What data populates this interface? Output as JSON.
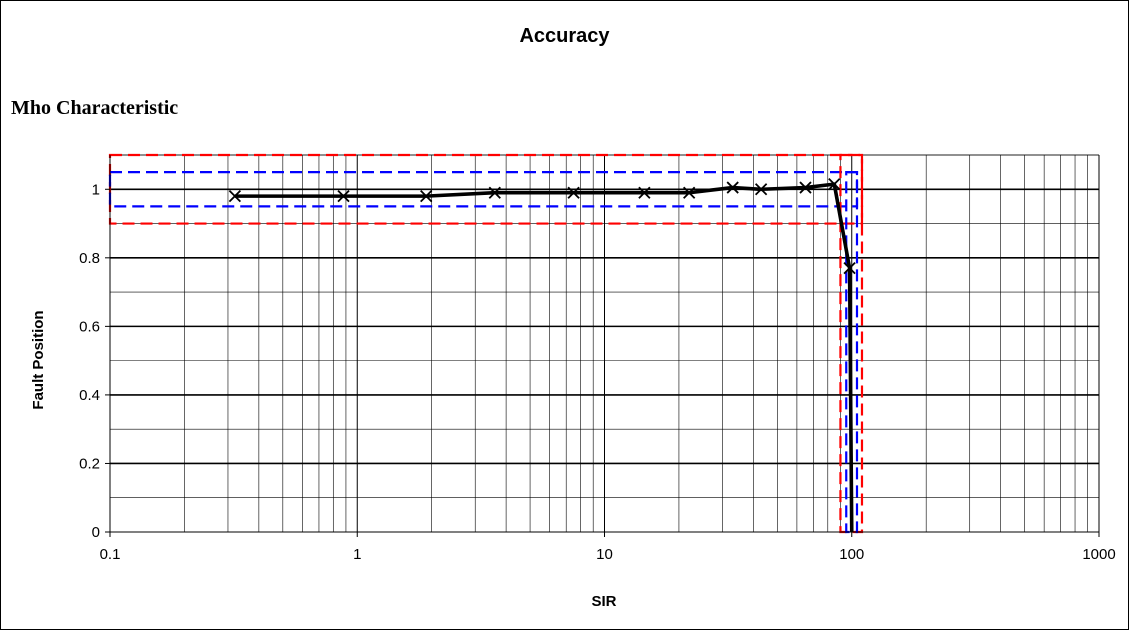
{
  "chart_data": {
    "type": "line",
    "title": "Accuracy",
    "subtitle": "Mho Characteristic",
    "xlabel": "SIR",
    "ylabel": "Fault Position",
    "xscale": "log",
    "xlim": [
      0.1,
      1000
    ],
    "ylim": [
      0,
      1.1
    ],
    "x_ticks": [
      "0.1",
      "1",
      "10",
      "100",
      "1000"
    ],
    "y_ticks": [
      "0",
      "0.2",
      "0.4",
      "0.6",
      "0.8",
      "1"
    ],
    "y_tick_values": [
      0,
      0.2,
      0.4,
      0.6,
      0.8,
      1
    ],
    "x_tick_values": [
      0.1,
      1,
      10,
      100,
      1000
    ],
    "grid": true,
    "legend": "none",
    "series": [
      {
        "marker": "x",
        "color": "#000000",
        "points": [
          [
            0.32,
            0.98
          ],
          [
            0.88,
            0.98
          ],
          [
            1.9,
            0.98
          ],
          [
            3.6,
            0.99
          ],
          [
            7.5,
            0.99
          ],
          [
            14.5,
            0.99
          ],
          [
            22,
            0.99
          ],
          [
            33,
            1.005
          ],
          [
            43,
            1.0
          ],
          [
            65,
            1.005
          ],
          [
            85,
            1.015
          ],
          [
            98,
            0.77
          ],
          [
            100,
            0.0
          ]
        ]
      }
    ],
    "tolerance_boxes": [
      {
        "color": "#ff0000",
        "dash": true,
        "x_range": [
          0.1,
          110
        ],
        "y_range": [
          0.9,
          1.1
        ]
      },
      {
        "color": "#0000ff",
        "dash": true,
        "x_range": [
          0.1,
          105
        ],
        "y_range": [
          0.95,
          1.05
        ]
      },
      {
        "color": "#ff0000",
        "dash": true,
        "x_range": [
          90,
          110
        ],
        "y_range": [
          0,
          1.1
        ]
      },
      {
        "color": "#0000ff",
        "dash": true,
        "x_range": [
          95,
          105
        ],
        "y_range": [
          0,
          1.05
        ]
      }
    ]
  }
}
